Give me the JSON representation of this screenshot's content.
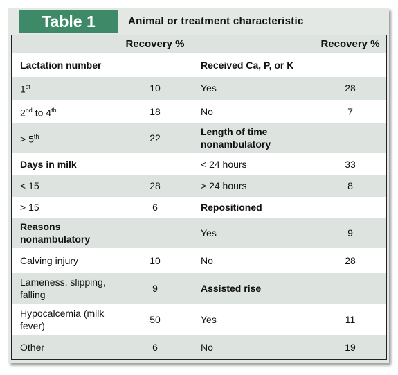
{
  "title": "Table 1",
  "heading": "Animal or treatment characteristic",
  "table": {
    "columns": [
      "Recovery %",
      "Recovery %"
    ],
    "rows": [
      {
        "left": {
          "heading": "Lactation number"
        },
        "right": {
          "heading": "Received Ca, P, or K"
        }
      },
      {
        "left": {
          "label": [
            {
              "text": "1"
            },
            {
              "sup": "st"
            }
          ],
          "value": 10
        },
        "right": {
          "label": "Yes",
          "value": 28
        }
      },
      {
        "left": {
          "label": [
            {
              "text": "2"
            },
            {
              "sup": "nd"
            },
            {
              "text": " to 4"
            },
            {
              "sup": "th"
            }
          ],
          "value": 18
        },
        "right": {
          "label": "No",
          "value": 7
        }
      },
      {
        "left": {
          "label": [
            {
              "text": "> 5"
            },
            {
              "sup": "th"
            }
          ],
          "value": 22
        },
        "right": {
          "heading": "Length of time nonambulatory"
        }
      },
      {
        "left": {
          "heading": "Days in milk"
        },
        "right": {
          "label": "< 24 hours",
          "value": 33
        }
      },
      {
        "left": {
          "label": "< 15",
          "value": 28
        },
        "right": {
          "label": "> 24 hours",
          "value": 8
        }
      },
      {
        "left": {
          "label": "> 15",
          "value": 6
        },
        "right": {
          "heading": "Repositioned"
        }
      },
      {
        "left": {
          "heading": "Reasons nonambulatory"
        },
        "right": {
          "label": "Yes",
          "value": 9
        }
      },
      {
        "left": {
          "label": "Calving injury",
          "value": 10
        },
        "right": {
          "label": "No",
          "value": 28
        }
      },
      {
        "left": {
          "label": "Lameness, slipping, falling",
          "value": 9
        },
        "right": {
          "heading": "Assisted rise"
        }
      },
      {
        "left": {
          "label": "Hypocalcemia (milk fever)",
          "value": 50
        },
        "right": {
          "label": "Yes",
          "value": 11
        }
      },
      {
        "left": {
          "label": "Other",
          "value": 6
        },
        "right": {
          "label": "No",
          "value": 19
        }
      }
    ]
  }
}
